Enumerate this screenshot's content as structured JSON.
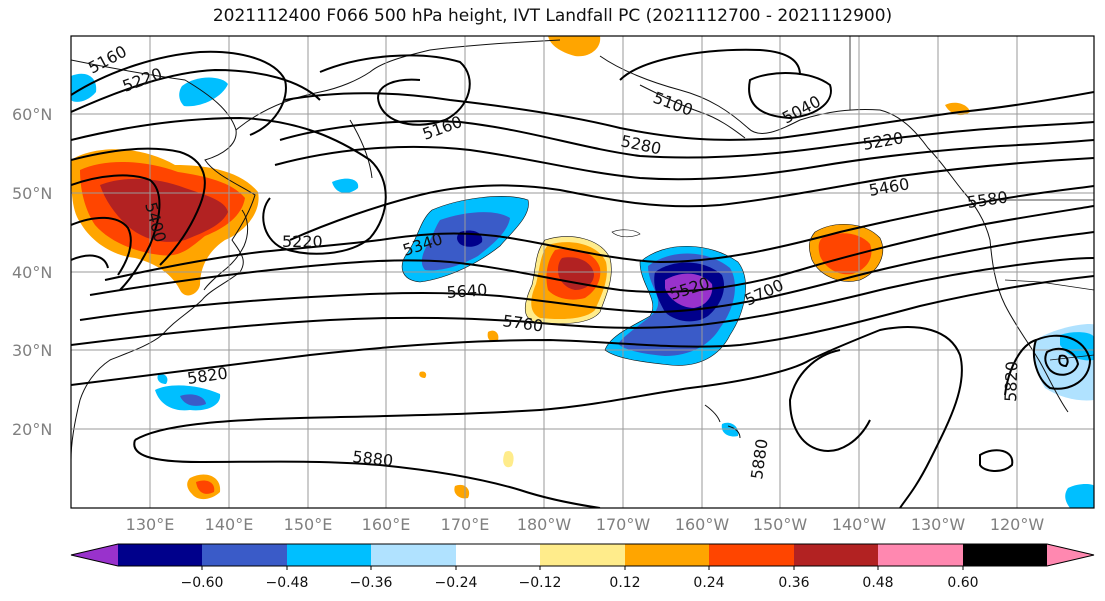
{
  "title": "2021112400 F066 500 hPa height, IVT Landfall PC (2021112700 - 2021112900)",
  "map": {
    "lat_labels": [
      "60°N",
      "50°N",
      "40°N",
      "30°N",
      "20°N"
    ],
    "lon_labels": [
      "130°E",
      "140°E",
      "150°E",
      "160°E",
      "170°E",
      "180°W",
      "170°W",
      "160°W",
      "150°W",
      "140°W",
      "130°W",
      "120°W"
    ],
    "contour_labels": [
      "5160",
      "5220",
      "5160",
      "5100",
      "5040",
      "5280",
      "5220",
      "5460",
      "5580",
      "5400",
      "5220",
      "5340",
      "5640",
      "5520",
      "5700",
      "5760",
      "5820",
      "5880",
      "5880",
      "5820"
    ],
    "land_color": "#ffffff",
    "grid": true
  },
  "colorbar": {
    "colors": [
      "#9932cc",
      "#00008b",
      "#3a5bc8",
      "#00bfff",
      "#b0e2ff",
      "#ffffff",
      "#ffec8b",
      "#ffa500",
      "#ff4500",
      "#b22222",
      "#ff88b0"
    ],
    "ticks": [
      "−0.60",
      "−0.48",
      "−0.36",
      "−0.24",
      "−0.12",
      "0.12",
      "0.24",
      "0.36",
      "0.48",
      "0.60"
    ],
    "extend": "both"
  }
}
